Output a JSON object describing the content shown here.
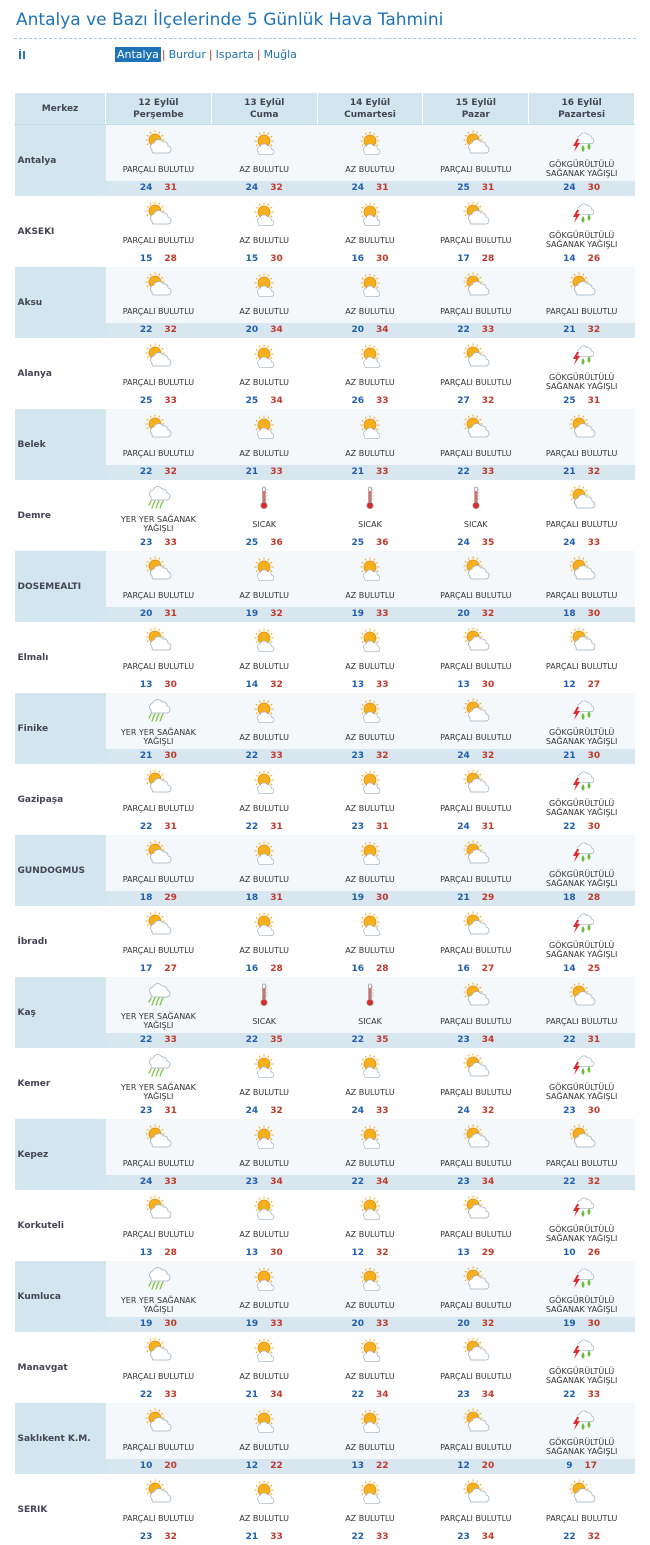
{
  "page": {
    "title": "Antalya ve Bazı İlçelerinde 5 Günlük Hava Tahmini",
    "il_label": "İl",
    "tabs": [
      "Antalya",
      "Burdur",
      "Isparta",
      "Muğla"
    ],
    "active_tab": 0
  },
  "table": {
    "header_city": "Merkez",
    "days": [
      {
        "date": "12 Eylül",
        "weekday": "Perşembe"
      },
      {
        "date": "13 Eylül",
        "weekday": "Cuma"
      },
      {
        "date": "14 Eylül",
        "weekday": "Cumartesi"
      },
      {
        "date": "15 Eylül",
        "weekday": "Pazar"
      },
      {
        "date": "16 Eylül",
        "weekday": "Pazartesi"
      }
    ],
    "conditions": {
      "pb": {
        "label": "PARÇALI BULUTLU",
        "icon": "partly-cloudy-icon"
      },
      "ab": {
        "label": "AZ BULUTLU",
        "icon": "mostly-sunny-icon"
      },
      "gsy": {
        "label": "GÖKGÜRÜLTÜLÜ SAĞANAK YAĞIŞLI",
        "icon": "thunderstorm-icon"
      },
      "yys": {
        "label": "YER YER SAĞANAK YAĞIŞLI",
        "icon": "rain-showers-icon"
      },
      "sicak": {
        "label": "SICAK",
        "icon": "thermometer-hot-icon"
      }
    },
    "rows": [
      {
        "city": "Antalya",
        "days": [
          [
            "pb",
            24,
            31
          ],
          [
            "ab",
            24,
            32
          ],
          [
            "ab",
            24,
            31
          ],
          [
            "pb",
            25,
            31
          ],
          [
            "gsy",
            24,
            30
          ]
        ]
      },
      {
        "city": "AKSEKI",
        "days": [
          [
            "pb",
            15,
            28
          ],
          [
            "ab",
            15,
            30
          ],
          [
            "ab",
            16,
            30
          ],
          [
            "pb",
            17,
            28
          ],
          [
            "gsy",
            14,
            26
          ]
        ]
      },
      {
        "city": "Aksu",
        "days": [
          [
            "pb",
            22,
            32
          ],
          [
            "ab",
            20,
            34
          ],
          [
            "ab",
            20,
            34
          ],
          [
            "pb",
            22,
            33
          ],
          [
            "pb",
            21,
            32
          ]
        ]
      },
      {
        "city": "Alanya",
        "days": [
          [
            "pb",
            25,
            33
          ],
          [
            "ab",
            25,
            34
          ],
          [
            "ab",
            26,
            33
          ],
          [
            "pb",
            27,
            32
          ],
          [
            "gsy",
            25,
            31
          ]
        ]
      },
      {
        "city": "Belek",
        "days": [
          [
            "pb",
            22,
            32
          ],
          [
            "ab",
            21,
            33
          ],
          [
            "ab",
            21,
            33
          ],
          [
            "pb",
            22,
            33
          ],
          [
            "pb",
            21,
            32
          ]
        ]
      },
      {
        "city": "Demre",
        "days": [
          [
            "yys",
            23,
            33
          ],
          [
            "sicak",
            25,
            36
          ],
          [
            "sicak",
            25,
            36
          ],
          [
            "sicak",
            24,
            35
          ],
          [
            "pb",
            24,
            33
          ]
        ]
      },
      {
        "city": "DOSEMEALTI",
        "days": [
          [
            "pb",
            20,
            31
          ],
          [
            "ab",
            19,
            32
          ],
          [
            "ab",
            19,
            33
          ],
          [
            "pb",
            20,
            32
          ],
          [
            "pb",
            18,
            30
          ]
        ]
      },
      {
        "city": "Elmalı",
        "days": [
          [
            "pb",
            13,
            30
          ],
          [
            "ab",
            14,
            32
          ],
          [
            "ab",
            13,
            33
          ],
          [
            "pb",
            13,
            30
          ],
          [
            "pb",
            12,
            27
          ]
        ]
      },
      {
        "city": "Finike",
        "days": [
          [
            "yys",
            21,
            30
          ],
          [
            "ab",
            22,
            33
          ],
          [
            "ab",
            23,
            32
          ],
          [
            "pb",
            24,
            32
          ],
          [
            "gsy",
            21,
            30
          ]
        ]
      },
      {
        "city": "Gazipaşa",
        "days": [
          [
            "pb",
            22,
            31
          ],
          [
            "ab",
            22,
            31
          ],
          [
            "ab",
            23,
            31
          ],
          [
            "pb",
            24,
            31
          ],
          [
            "gsy",
            22,
            30
          ]
        ]
      },
      {
        "city": "GUNDOGMUS",
        "days": [
          [
            "pb",
            18,
            29
          ],
          [
            "ab",
            18,
            31
          ],
          [
            "ab",
            19,
            30
          ],
          [
            "pb",
            21,
            29
          ],
          [
            "gsy",
            18,
            28
          ]
        ]
      },
      {
        "city": "İbradı",
        "days": [
          [
            "pb",
            17,
            27
          ],
          [
            "ab",
            16,
            28
          ],
          [
            "ab",
            16,
            28
          ],
          [
            "pb",
            16,
            27
          ],
          [
            "gsy",
            14,
            25
          ]
        ]
      },
      {
        "city": "Kaş",
        "days": [
          [
            "yys",
            22,
            33
          ],
          [
            "sicak",
            22,
            35
          ],
          [
            "sicak",
            22,
            35
          ],
          [
            "pb",
            23,
            34
          ],
          [
            "pb",
            22,
            31
          ]
        ]
      },
      {
        "city": "Kemer",
        "days": [
          [
            "yys",
            23,
            31
          ],
          [
            "ab",
            24,
            32
          ],
          [
            "ab",
            24,
            33
          ],
          [
            "pb",
            24,
            32
          ],
          [
            "gsy",
            23,
            30
          ]
        ]
      },
      {
        "city": "Kepez",
        "days": [
          [
            "pb",
            24,
            33
          ],
          [
            "ab",
            23,
            34
          ],
          [
            "ab",
            22,
            34
          ],
          [
            "pb",
            23,
            34
          ],
          [
            "pb",
            22,
            32
          ]
        ]
      },
      {
        "city": "Korkuteli",
        "days": [
          [
            "pb",
            13,
            28
          ],
          [
            "ab",
            13,
            30
          ],
          [
            "ab",
            12,
            32
          ],
          [
            "pb",
            13,
            29
          ],
          [
            "gsy",
            10,
            26
          ]
        ]
      },
      {
        "city": "Kumluca",
        "days": [
          [
            "yys",
            19,
            30
          ],
          [
            "ab",
            19,
            33
          ],
          [
            "ab",
            20,
            33
          ],
          [
            "pb",
            20,
            32
          ],
          [
            "gsy",
            19,
            30
          ]
        ]
      },
      {
        "city": "Manavgat",
        "days": [
          [
            "pb",
            22,
            33
          ],
          [
            "ab",
            21,
            34
          ],
          [
            "ab",
            22,
            34
          ],
          [
            "pb",
            23,
            34
          ],
          [
            "gsy",
            22,
            33
          ]
        ]
      },
      {
        "city": "Saklıkent K.M.",
        "days": [
          [
            "pb",
            10,
            20
          ],
          [
            "ab",
            12,
            22
          ],
          [
            "ab",
            13,
            22
          ],
          [
            "pb",
            12,
            20
          ],
          [
            "gsy",
            9,
            17
          ]
        ]
      },
      {
        "city": "SERIK",
        "days": [
          [
            "pb",
            23,
            32
          ],
          [
            "ab",
            21,
            33
          ],
          [
            "ab",
            22,
            33
          ],
          [
            "pb",
            23,
            34
          ],
          [
            "pb",
            22,
            32
          ]
        ]
      }
    ]
  },
  "colors": {
    "accent": "#1f73b5",
    "header_bg": "#d3e6f0",
    "min_temp": "#1f5fae",
    "max_temp": "#c0392b"
  }
}
